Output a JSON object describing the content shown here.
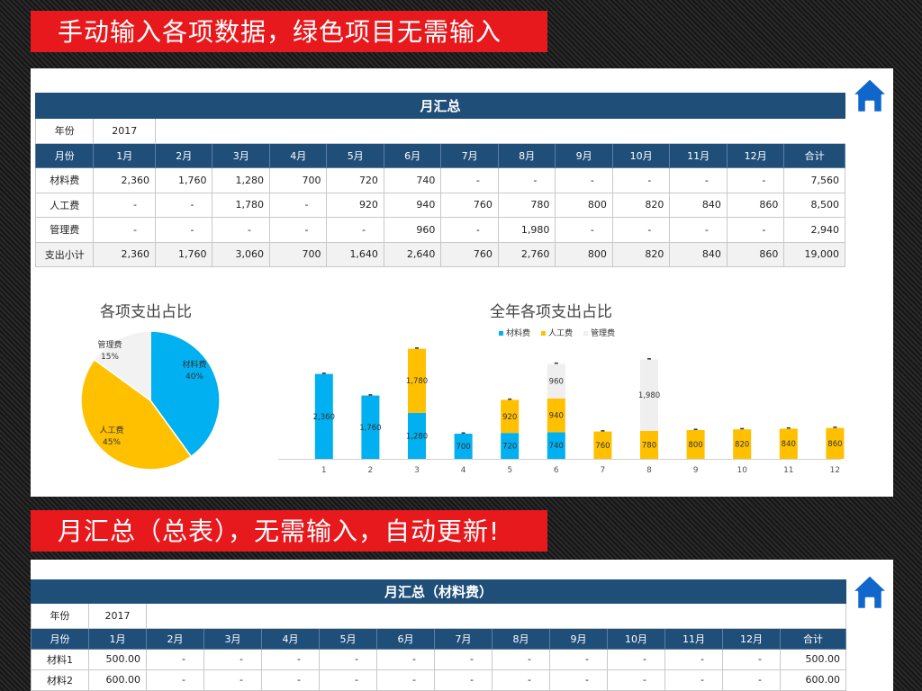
{
  "banner1": "手动输入各项数据，绿色项目无需输入",
  "banner2": "月汇总（总表），无需输入，自动更新!",
  "table1": {
    "title": "月汇总",
    "year_label": "年份",
    "year_value": "2017",
    "header": [
      "月份",
      "1月",
      "2月",
      "3月",
      "4月",
      "5月",
      "6月",
      "7月",
      "8月",
      "9月",
      "10月",
      "11月",
      "12月",
      "合计"
    ],
    "rows": [
      [
        "材料费",
        "2,360",
        "1,760",
        "1,280",
        "700",
        "720",
        "740",
        "-",
        "-",
        "-",
        "-",
        "-",
        "-",
        "7,560"
      ],
      [
        "人工费",
        "-",
        "-",
        "1,780",
        "-",
        "920",
        "940",
        "760",
        "780",
        "800",
        "820",
        "840",
        "860",
        "8,500"
      ],
      [
        "管理费",
        "-",
        "-",
        "-",
        "-",
        "-",
        "960",
        "-",
        "1,980",
        "-",
        "-",
        "-",
        "-",
        "2,940"
      ],
      [
        "支出小计",
        "2,360",
        "1,760",
        "3,060",
        "700",
        "1,640",
        "2,640",
        "760",
        "2,760",
        "800",
        "820",
        "840",
        "860",
        "19,000"
      ]
    ]
  },
  "pie_chart": {
    "title": "各项支出占比",
    "slices": [
      {
        "name": "材料费",
        "pct": "40%",
        "value": 40,
        "color": "#00b0f0"
      },
      {
        "name": "人工费",
        "pct": "45%",
        "value": 45,
        "color": "#ffc000"
      },
      {
        "name": "管理费",
        "pct": "15%",
        "value": 15,
        "color": "#f2f2f2"
      }
    ]
  },
  "chart_data": {
    "type": "bar",
    "stacked": true,
    "title": "全年各项支出占比",
    "categories": [
      "1",
      "2",
      "3",
      "4",
      "5",
      "6",
      "7",
      "8",
      "9",
      "10",
      "11",
      "12"
    ],
    "series": [
      {
        "name": "材料费",
        "color": "#00b0f0",
        "values": [
          2360,
          1760,
          1280,
          700,
          720,
          740,
          0,
          0,
          0,
          0,
          0,
          0
        ]
      },
      {
        "name": "人工费",
        "color": "#ffc000",
        "values": [
          0,
          0,
          1780,
          0,
          920,
          940,
          760,
          780,
          800,
          820,
          840,
          860
        ]
      },
      {
        "name": "管理费",
        "color": "#efefef",
        "values": [
          0,
          0,
          0,
          0,
          0,
          960,
          0,
          1980,
          0,
          0,
          0,
          0
        ]
      }
    ],
    "legend": "top",
    "ylim": [
      0,
      3100
    ]
  },
  "table2": {
    "title": "月汇总（材料费）",
    "year_label": "年份",
    "year_value": "2017",
    "header": [
      "月份",
      "1月",
      "2月",
      "3月",
      "4月",
      "5月",
      "6月",
      "7月",
      "8月",
      "9月",
      "10月",
      "11月",
      "12月",
      "合计"
    ],
    "rows": [
      [
        "材料1",
        "500.00",
        "-",
        "-",
        "-",
        "-",
        "-",
        "-",
        "-",
        "-",
        "-",
        "-",
        "-",
        "500.00"
      ],
      [
        "材料2",
        "600.00",
        "-",
        "-",
        "-",
        "-",
        "-",
        "-",
        "-",
        "-",
        "-",
        "-",
        "-",
        "600.00"
      ]
    ]
  }
}
